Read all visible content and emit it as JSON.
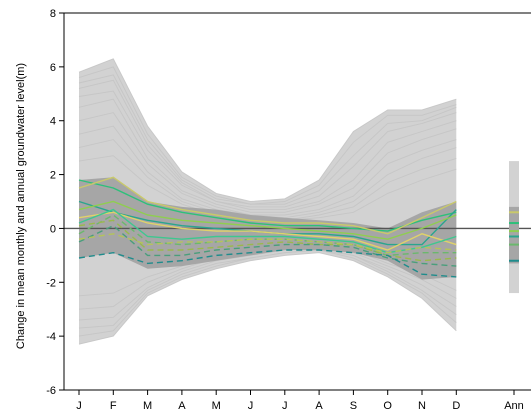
{
  "chart_data": {
    "type": "line",
    "title": "",
    "xlabel": "",
    "ylabel": "Change in mean monthly and annual groundwater level(m)",
    "categories": [
      "J",
      "F",
      "M",
      "A",
      "M",
      "J",
      "J",
      "A",
      "S",
      "O",
      "N",
      "D"
    ],
    "annual_label": "Ann",
    "ylim": [
      -6,
      8
    ],
    "yticks": [
      -6,
      -4,
      -2,
      0,
      2,
      4,
      6,
      8
    ],
    "zero_line": 0,
    "grid": false,
    "ensemble_envelope": {
      "upper": [
        5.8,
        6.3,
        3.8,
        2.1,
        1.3,
        1.0,
        1.1,
        1.8,
        3.6,
        4.4,
        4.4,
        4.8
      ],
      "lower": [
        -4.3,
        -4.0,
        -2.5,
        -1.9,
        -1.5,
        -1.2,
        -1.0,
        -0.9,
        -1.2,
        -1.8,
        -2.6,
        -3.8
      ]
    },
    "ensemble_curves": [
      [
        5.8,
        6.3,
        3.8,
        2.1,
        1.3,
        1.0,
        1.1,
        1.8,
        3.6,
        4.4,
        4.4,
        4.8
      ],
      [
        5.6,
        6.0,
        3.5,
        1.9,
        1.2,
        0.9,
        1.0,
        1.6,
        3.2,
        4.2,
        4.2,
        4.6
      ],
      [
        5.4,
        5.7,
        3.3,
        1.8,
        1.1,
        0.9,
        0.9,
        1.4,
        2.7,
        3.9,
        4.0,
        4.5
      ],
      [
        5.2,
        5.5,
        3.1,
        1.7,
        1.0,
        0.8,
        0.8,
        1.2,
        2.3,
        3.6,
        3.9,
        4.3
      ],
      [
        4.9,
        5.1,
        2.9,
        1.6,
        1.0,
        0.7,
        0.7,
        1.0,
        1.8,
        3.2,
        3.6,
        4.0
      ],
      [
        4.5,
        4.8,
        2.6,
        1.4,
        0.9,
        0.6,
        0.6,
        0.9,
        1.5,
        2.8,
        3.3,
        3.7
      ],
      [
        4.0,
        4.3,
        2.4,
        1.3,
        0.8,
        0.5,
        0.5,
        0.7,
        1.2,
        2.4,
        2.9,
        3.3
      ],
      [
        3.5,
        3.8,
        2.1,
        1.1,
        0.7,
        0.5,
        0.4,
        0.6,
        1.0,
        2.0,
        2.6,
        3.0
      ],
      [
        3.0,
        3.3,
        1.9,
        1.0,
        0.6,
        0.4,
        0.3,
        0.5,
        0.8,
        1.7,
        2.2,
        2.6
      ],
      [
        2.5,
        2.7,
        1.6,
        0.9,
        0.5,
        0.3,
        0.3,
        0.4,
        0.6,
        1.3,
        1.8,
        2.2
      ],
      [
        -2.5,
        -2.4,
        -1.8,
        -1.4,
        -1.0,
        -0.8,
        -0.7,
        -0.6,
        -0.8,
        -1.3,
        -1.7,
        -2.3
      ],
      [
        -3.0,
        -2.9,
        -2.0,
        -1.5,
        -1.1,
        -0.9,
        -0.8,
        -0.7,
        -0.9,
        -1.4,
        -1.9,
        -2.6
      ],
      [
        -3.4,
        -3.3,
        -2.2,
        -1.6,
        -1.2,
        -1.0,
        -0.8,
        -0.7,
        -1.0,
        -1.5,
        -2.1,
        -2.9
      ],
      [
        -3.7,
        -3.6,
        -2.3,
        -1.7,
        -1.3,
        -1.1,
        -0.9,
        -0.8,
        -1.0,
        -1.6,
        -2.3,
        -3.2
      ],
      [
        -4.0,
        -3.8,
        -2.4,
        -1.8,
        -1.4,
        -1.1,
        -0.9,
        -0.8,
        -1.1,
        -1.7,
        -2.4,
        -3.5
      ],
      [
        -4.3,
        -4.0,
        -2.5,
        -1.9,
        -1.5,
        -1.2,
        -1.0,
        -0.9,
        -1.2,
        -1.8,
        -2.6,
        -3.8
      ]
    ],
    "subset_envelope": {
      "upper": [
        1.8,
        1.9,
        1.0,
        0.8,
        0.7,
        0.5,
        0.4,
        0.3,
        0.2,
        0.0,
        0.6,
        1.0
      ],
      "lower": [
        -1.1,
        -0.9,
        -1.5,
        -1.4,
        -1.2,
        -1.0,
        -0.8,
        -0.8,
        -0.9,
        -1.2,
        -1.9,
        -1.8
      ]
    },
    "series": [
      {
        "values": [
          1.8,
          1.5,
          0.9,
          0.6,
          0.4,
          0.2,
          0.1,
          0.1,
          0.0,
          -0.1,
          0.3,
          0.6
        ],
        "color": "#2dc07a",
        "dash": false
      },
      {
        "values": [
          1.5,
          1.9,
          1.0,
          0.7,
          0.5,
          0.3,
          0.2,
          0.2,
          0.1,
          -0.2,
          0.4,
          1.0
        ],
        "color": "#c9c96a",
        "dash": false
      },
      {
        "values": [
          1.0,
          0.6,
          0.3,
          0.1,
          0.0,
          -0.1,
          -0.2,
          -0.2,
          -0.3,
          -0.6,
          -0.6,
          0.7
        ],
        "color": "#2aa58e",
        "dash": false
      },
      {
        "values": [
          0.7,
          1.0,
          0.5,
          0.3,
          0.2,
          0.1,
          0.0,
          -0.1,
          -0.2,
          -0.4,
          0.0,
          0.5
        ],
        "color": "#8fce4f",
        "dash": false
      },
      {
        "values": [
          0.4,
          0.6,
          0.2,
          0.0,
          -0.1,
          -0.1,
          -0.2,
          -0.3,
          -0.4,
          -0.8,
          -0.2,
          -0.6
        ],
        "color": "#e0d26a",
        "dash": false
      },
      {
        "values": [
          0.2,
          0.7,
          -0.3,
          -0.4,
          -0.3,
          -0.3,
          -0.3,
          -0.4,
          -0.5,
          -0.9,
          -0.7,
          -0.3
        ],
        "color": "#3ec78f",
        "dash": false
      },
      {
        "values": [
          -0.2,
          0.5,
          -0.5,
          -0.6,
          -0.5,
          -0.4,
          -0.4,
          -0.5,
          -0.6,
          -1.0,
          -0.9,
          -0.9
        ],
        "color": "#6bb86d",
        "dash": true
      },
      {
        "values": [
          0.1,
          0.3,
          -0.8,
          -0.8,
          -0.7,
          -0.6,
          -0.5,
          -0.6,
          -0.6,
          -1.0,
          -1.2,
          -1.1
        ],
        "color": "#9ab94c",
        "dash": true
      },
      {
        "values": [
          -0.5,
          0.1,
          -1.0,
          -1.0,
          -0.8,
          -0.7,
          -0.6,
          -0.6,
          -0.7,
          -1.1,
          -1.3,
          -1.4
        ],
        "color": "#4a9e7c",
        "dash": true
      },
      {
        "values": [
          -1.1,
          -0.9,
          -1.3,
          -1.2,
          -1.0,
          -0.9,
          -0.8,
          -0.8,
          -0.9,
          -1.0,
          -1.7,
          -1.8
        ],
        "color": "#1f8c8c",
        "dash": true
      },
      {
        "values": [
          -0.4,
          -0.2,
          -0.6,
          -0.5,
          -0.5,
          -0.4,
          -0.4,
          -0.5,
          -0.6,
          -0.9,
          -0.7,
          -0.8
        ],
        "color": "#b4c45a",
        "dash": true
      }
    ],
    "annual": {
      "range": [
        -2.4,
        2.5
      ],
      "subset_range": [
        -1.3,
        0.8
      ],
      "marks": [
        {
          "value": 0.6,
          "color": "#c9c96a"
        },
        {
          "value": 0.2,
          "color": "#2dc07a"
        },
        {
          "value": -0.1,
          "color": "#8fce4f"
        },
        {
          "value": -0.3,
          "color": "#2aa58e"
        },
        {
          "value": -0.6,
          "color": "#6bb86d"
        },
        {
          "value": -1.2,
          "color": "#1f8c8c"
        }
      ]
    },
    "colors": {
      "ensemble": "#d2d2d2",
      "subset_band": "#a6a6a6",
      "zero_line": "#555555",
      "axis": "#000000"
    }
  }
}
